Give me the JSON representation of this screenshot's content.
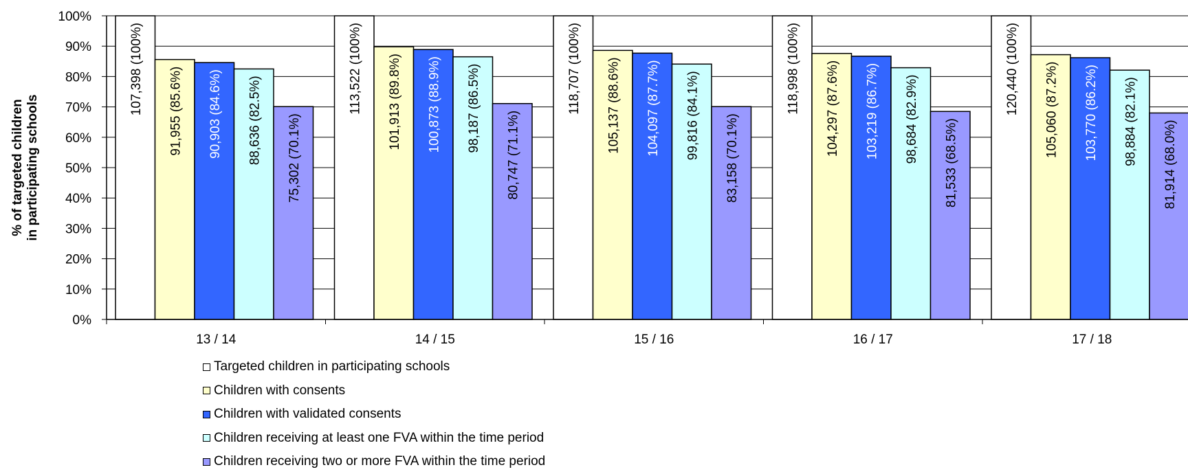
{
  "chart_data": {
    "type": "bar",
    "ylabel": [
      "% of targeted children",
      "in participating schools"
    ],
    "ylim": [
      0,
      100
    ],
    "yticks": [
      "0%",
      "10%",
      "20%",
      "30%",
      "40%",
      "50%",
      "60%",
      "70%",
      "80%",
      "90%",
      "100%"
    ],
    "grid": true,
    "legend_position": "bottom",
    "categories": [
      "13 / 14",
      "14 / 15",
      "15 / 16",
      "16 / 17",
      "17 / 18"
    ],
    "series": [
      {
        "name": "Targeted children in participating schools",
        "color": "#ffffff",
        "values": [
          100,
          100,
          100,
          100,
          100
        ],
        "labels": [
          "107,398 (100%)",
          "113,522 (100%)",
          "118,707 (100%)",
          "118,998 (100%)",
          "120,440 (100%)"
        ]
      },
      {
        "name": "Children with consents",
        "color": "#ffffcc",
        "values": [
          85.6,
          89.8,
          88.6,
          87.6,
          87.2
        ],
        "labels": [
          "91,955 (85.6%)",
          "101,913 (89.8%)",
          "105,137 (88.6%)",
          "104,297 (87.6%)",
          "105,060 (87.2%)"
        ]
      },
      {
        "name": "Children with validated consents",
        "color": "#3366ff",
        "values": [
          84.6,
          88.9,
          87.7,
          86.7,
          86.2
        ],
        "labels": [
          "90,903 (84.6%)",
          "100,873 (88.9%)",
          "104,097 (87.7%)",
          "103,219 (86.7%)",
          "103,770 (86.2%)"
        ]
      },
      {
        "name": "Children receiving at least one FVA within the time period",
        "color": "#ccffff",
        "values": [
          82.5,
          86.5,
          84.1,
          82.9,
          82.1
        ],
        "labels": [
          "88,636 (82.5%)",
          "98,187 (86.5%)",
          "99,816 (84.1%)",
          "98,684 (82.9%)",
          "98,884 (82.1%)"
        ]
      },
      {
        "name": "Children receiving two or more FVA within the time period",
        "color": "#9999ff",
        "values": [
          70.1,
          71.1,
          70.1,
          68.5,
          68.0
        ],
        "labels": [
          "75,302 (70.1%)",
          "80,747 (71.1%)",
          "83,158 (70.1%)",
          "81,533 (68.5%)",
          "81,914 (68.0%)"
        ]
      }
    ]
  }
}
